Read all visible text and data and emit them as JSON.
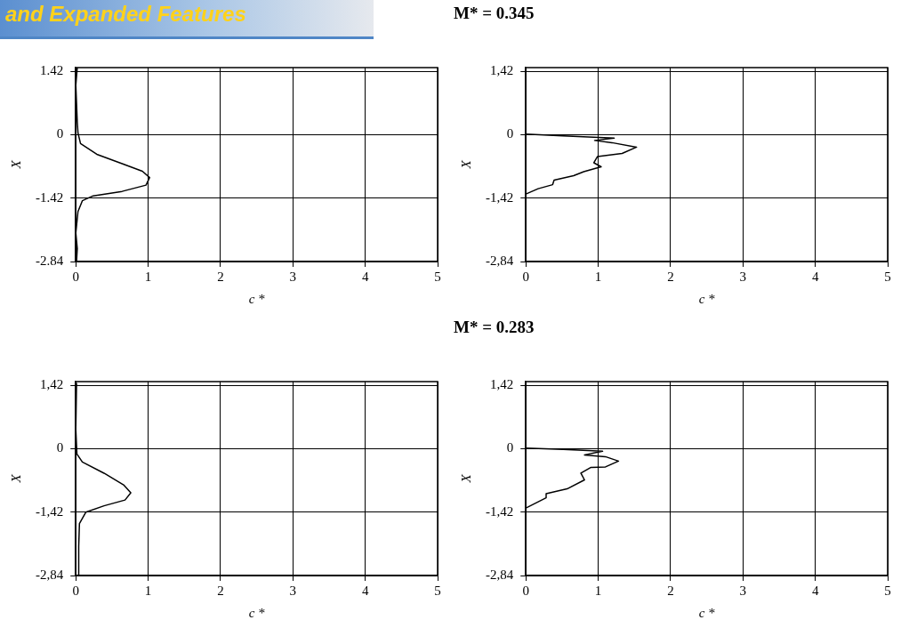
{
  "chart_data": [
    {
      "type": "line",
      "title": "and Expanded Features",
      "xlabel": "c *",
      "ylabel": "X",
      "xlim": [
        0,
        5
      ],
      "ylim": [
        -2.84,
        1.5
      ],
      "xticks": [
        0,
        1,
        2,
        3,
        4,
        5
      ],
      "yticks": [
        -2.84,
        -1.42,
        0,
        1.42
      ],
      "grid": true,
      "legend": false,
      "marker": "none",
      "line_style": "solid",
      "series": [
        {
          "color": "#000000",
          "x": [
            0.02,
            0,
            0.02,
            0.03,
            0.065,
            0.29,
            0.64,
            0.92,
            1.02,
            0.97,
            0.64,
            0.24,
            0.09,
            0.03,
            0,
            0.02,
            0.01
          ],
          "values": [
            1.5,
            1.11,
            0.28,
            0.04,
            -0.2,
            -0.44,
            -0.65,
            -0.82,
            -0.96,
            -1.13,
            -1.27,
            -1.37,
            -1.48,
            -1.72,
            -2.2,
            -2.55,
            -2.84
          ]
        }
      ]
    },
    {
      "type": "line",
      "title": "M* = 0.345",
      "xlabel": "c *",
      "ylabel": "X",
      "xlim": [
        0,
        5
      ],
      "ylim": [
        -2.84,
        1.5
      ],
      "xticks": [
        0,
        1,
        2,
        3,
        4,
        5
      ],
      "yticks": [
        {
          "value": -2.84,
          "label": "-2,84"
        },
        {
          "value": -1.42,
          "label": "-1,42"
        },
        0,
        {
          "value": 1.42,
          "label": "1,42"
        }
      ],
      "grid": true,
      "legend": false,
      "marker": "none",
      "line_style": "solid",
      "series": [
        {
          "color": "#000000",
          "x": [
            0,
            0.51,
            1.22,
            0.95,
            1.19,
            1.53,
            1.33,
            0.99,
            0.94,
            1.04,
            0.8,
            0.66,
            0.39,
            0.37,
            0.17,
            0
          ],
          "values": [
            0.01,
            -0.03,
            -0.08,
            -0.13,
            -0.18,
            -0.28,
            -0.42,
            -0.49,
            -0.63,
            -0.72,
            -0.83,
            -0.92,
            -1.02,
            -1.12,
            -1.21,
            -1.33
          ]
        }
      ]
    },
    {
      "type": "line",
      "xlabel": "c *",
      "ylabel": "X",
      "xlim": [
        0,
        5
      ],
      "ylim": [
        -2.84,
        1.5
      ],
      "xticks": [
        0,
        1,
        2,
        3,
        4,
        5
      ],
      "yticks": [
        {
          "value": -2.84,
          "label": "-2,84"
        },
        {
          "value": -1.42,
          "label": "-1,42"
        },
        0,
        {
          "value": 1.42,
          "label": "1,42"
        }
      ],
      "grid": true,
      "legend": false,
      "marker": "none",
      "line_style": "solid",
      "series": [
        {
          "color": "#000000",
          "x": [
            0.01,
            0,
            0.015,
            0.09,
            0.39,
            0.66,
            0.76,
            0.68,
            0.39,
            0.14,
            0.05,
            0.04,
            0.04
          ],
          "values": [
            1.47,
            0.43,
            -0.12,
            -0.3,
            -0.55,
            -0.81,
            -0.99,
            -1.15,
            -1.28,
            -1.42,
            -1.68,
            -2.19,
            -2.84
          ]
        }
      ]
    },
    {
      "type": "line",
      "title": "M* = 0.283",
      "xlabel": "c *",
      "ylabel": "X",
      "xlim": [
        0,
        5
      ],
      "ylim": [
        -2.84,
        1.5
      ],
      "xticks": [
        0,
        1,
        2,
        3,
        4,
        5
      ],
      "yticks": [
        {
          "value": -2.84,
          "label": "-2,84"
        },
        {
          "value": -1.42,
          "label": "-1,42"
        },
        0,
        {
          "value": 1.42,
          "label": "1,42"
        }
      ],
      "grid": true,
      "legend": false,
      "marker": "none",
      "line_style": "solid",
      "series": [
        {
          "color": "#000000",
          "x": [
            0,
            0.52,
            1.06,
            0.81,
            1.1,
            1.28,
            1.1,
            0.9,
            0.76,
            0.81,
            0.57,
            0.28,
            0.28,
            0
          ],
          "values": [
            0.01,
            -0.02,
            -0.06,
            -0.14,
            -0.18,
            -0.28,
            -0.41,
            -0.42,
            -0.55,
            -0.7,
            -0.9,
            -1.01,
            -1.1,
            -1.33
          ]
        }
      ]
    }
  ]
}
